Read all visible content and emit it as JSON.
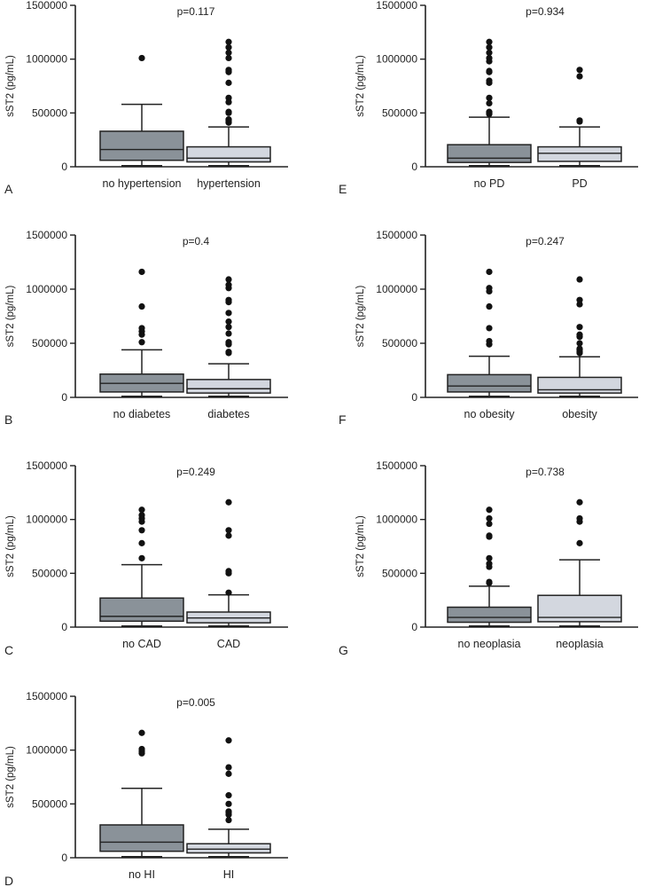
{
  "colors": {
    "no_group": "#8a9299",
    "group": "#d3d7df",
    "ink": "#222222"
  },
  "chart_data": [
    {
      "id": "A",
      "type": "box",
      "letter": "A",
      "p_value": "p=0.117",
      "ylabel": "sST2 (pg/mL)",
      "ylim": [
        0,
        1500000
      ],
      "yticks": [
        0,
        500000,
        1000000,
        1500000
      ],
      "ytick_labels": [
        "0",
        "500000",
        "1000000",
        "1500000"
      ],
      "categories": [
        "no hypertension",
        "hypertension"
      ],
      "boxes": [
        {
          "min": 10000,
          "q1": 60000,
          "median": 160000,
          "q3": 330000,
          "max": 580000,
          "outliers": [
            1010000
          ]
        },
        {
          "min": 10000,
          "q1": 45000,
          "median": 80000,
          "q3": 185000,
          "max": 370000,
          "outliers": [
            410000,
            420000,
            430000,
            440000,
            500000,
            510000,
            600000,
            640000,
            780000,
            880000,
            890000,
            900000,
            1010000,
            1060000,
            1110000,
            1160000
          ]
        }
      ]
    },
    {
      "id": "B",
      "type": "box",
      "letter": "B",
      "p_value": "p=0.4",
      "ylabel": "sST2 (pg/mL)",
      "ylim": [
        0,
        1500000
      ],
      "yticks": [
        0,
        500000,
        1000000,
        1500000
      ],
      "ytick_labels": [
        "0",
        "500000",
        "1000000",
        "1500000"
      ],
      "categories": [
        "no diabetes",
        "diabetes"
      ],
      "boxes": [
        {
          "min": 10000,
          "q1": 50000,
          "median": 130000,
          "q3": 215000,
          "max": 440000,
          "outliers": [
            510000,
            580000,
            610000,
            640000,
            840000,
            1160000
          ]
        },
        {
          "min": 10000,
          "q1": 40000,
          "median": 80000,
          "q3": 165000,
          "max": 310000,
          "outliers": [
            410000,
            420000,
            490000,
            500000,
            510000,
            590000,
            650000,
            700000,
            780000,
            880000,
            900000,
            1010000,
            1040000,
            1090000
          ]
        }
      ]
    },
    {
      "id": "C",
      "type": "box",
      "letter": "C",
      "p_value": "p=0.249",
      "ylabel": "sST2 (pg/mL)",
      "ylim": [
        0,
        1500000
      ],
      "yticks": [
        0,
        500000,
        1000000,
        1500000
      ],
      "ytick_labels": [
        "0",
        "500000",
        "1000000",
        "1500000"
      ],
      "categories": [
        "no CAD",
        "CAD"
      ],
      "boxes": [
        {
          "min": 10000,
          "q1": 55000,
          "median": 100000,
          "q3": 270000,
          "max": 580000,
          "outliers": [
            640000,
            780000,
            900000,
            980000,
            1010000,
            1040000,
            1090000
          ]
        },
        {
          "min": 10000,
          "q1": 40000,
          "median": 85000,
          "q3": 140000,
          "max": 300000,
          "outliers": [
            320000,
            500000,
            520000,
            850000,
            900000,
            1160000
          ]
        }
      ]
    },
    {
      "id": "D",
      "type": "box",
      "letter": "D",
      "p_value": "p=0.005",
      "ylabel": "sST2 (pg/mL)",
      "ylim": [
        0,
        1500000
      ],
      "yticks": [
        0,
        500000,
        1000000,
        1500000
      ],
      "ytick_labels": [
        "0",
        "500000",
        "1000000",
        "1500000"
      ],
      "categories": [
        "no HI",
        "HI"
      ],
      "boxes": [
        {
          "min": 10000,
          "q1": 60000,
          "median": 145000,
          "q3": 305000,
          "max": 645000,
          "outliers": [
            970000,
            990000,
            1010000,
            1160000
          ]
        },
        {
          "min": 10000,
          "q1": 45000,
          "median": 80000,
          "q3": 130000,
          "max": 265000,
          "outliers": [
            350000,
            400000,
            420000,
            430000,
            500000,
            580000,
            780000,
            840000,
            1090000
          ]
        }
      ]
    },
    {
      "id": "E",
      "type": "box",
      "letter": "E",
      "p_value": "p=0.934",
      "ylabel": "sST2 (pg/mL)",
      "ylim": [
        0,
        1500000
      ],
      "yticks": [
        0,
        500000,
        1000000,
        1500000
      ],
      "ytick_labels": [
        "0",
        "500000",
        "1000000",
        "1500000"
      ],
      "categories": [
        "no PD",
        "PD"
      ],
      "boxes": [
        {
          "min": 10000,
          "q1": 40000,
          "median": 80000,
          "q3": 205000,
          "max": 460000,
          "outliers": [
            490000,
            500000,
            510000,
            590000,
            640000,
            780000,
            800000,
            880000,
            890000,
            980000,
            1010000,
            1060000,
            1110000,
            1160000
          ]
        },
        {
          "min": 10000,
          "q1": 50000,
          "median": 125000,
          "q3": 185000,
          "max": 370000,
          "outliers": [
            420000,
            430000,
            840000,
            900000
          ]
        }
      ]
    },
    {
      "id": "F",
      "type": "box",
      "letter": "F",
      "p_value": "p=0.247",
      "ylabel": "sST2 (pg/mL)",
      "ylim": [
        0,
        1500000
      ],
      "yticks": [
        0,
        500000,
        1000000,
        1500000
      ],
      "ytick_labels": [
        "0",
        "500000",
        "1000000",
        "1500000"
      ],
      "categories": [
        "no obesity",
        "obesity"
      ],
      "boxes": [
        {
          "min": 10000,
          "q1": 50000,
          "median": 105000,
          "q3": 210000,
          "max": 380000,
          "outliers": [
            490000,
            520000,
            640000,
            840000,
            980000,
            1010000,
            1160000
          ]
        },
        {
          "min": 10000,
          "q1": 40000,
          "median": 70000,
          "q3": 185000,
          "max": 375000,
          "outliers": [
            410000,
            420000,
            440000,
            450000,
            500000,
            560000,
            580000,
            650000,
            860000,
            900000,
            1090000
          ]
        }
      ]
    },
    {
      "id": "G",
      "type": "box",
      "letter": "G",
      "p_value": "p=0.738",
      "ylabel": "sST2 (pg/mL)",
      "ylim": [
        0,
        1500000
      ],
      "yticks": [
        0,
        500000,
        1000000,
        1500000
      ],
      "ytick_labels": [
        "0",
        "500000",
        "1000000",
        "1500000"
      ],
      "categories": [
        "no neoplasia",
        "neoplasia"
      ],
      "boxes": [
        {
          "min": 10000,
          "q1": 45000,
          "median": 90000,
          "q3": 185000,
          "max": 380000,
          "outliers": [
            410000,
            420000,
            560000,
            590000,
            640000,
            840000,
            850000,
            960000,
            1010000,
            1090000
          ]
        },
        {
          "min": 10000,
          "q1": 50000,
          "median": 90000,
          "q3": 295000,
          "max": 625000,
          "outliers": [
            780000,
            980000,
            1010000,
            1160000
          ]
        }
      ]
    }
  ]
}
